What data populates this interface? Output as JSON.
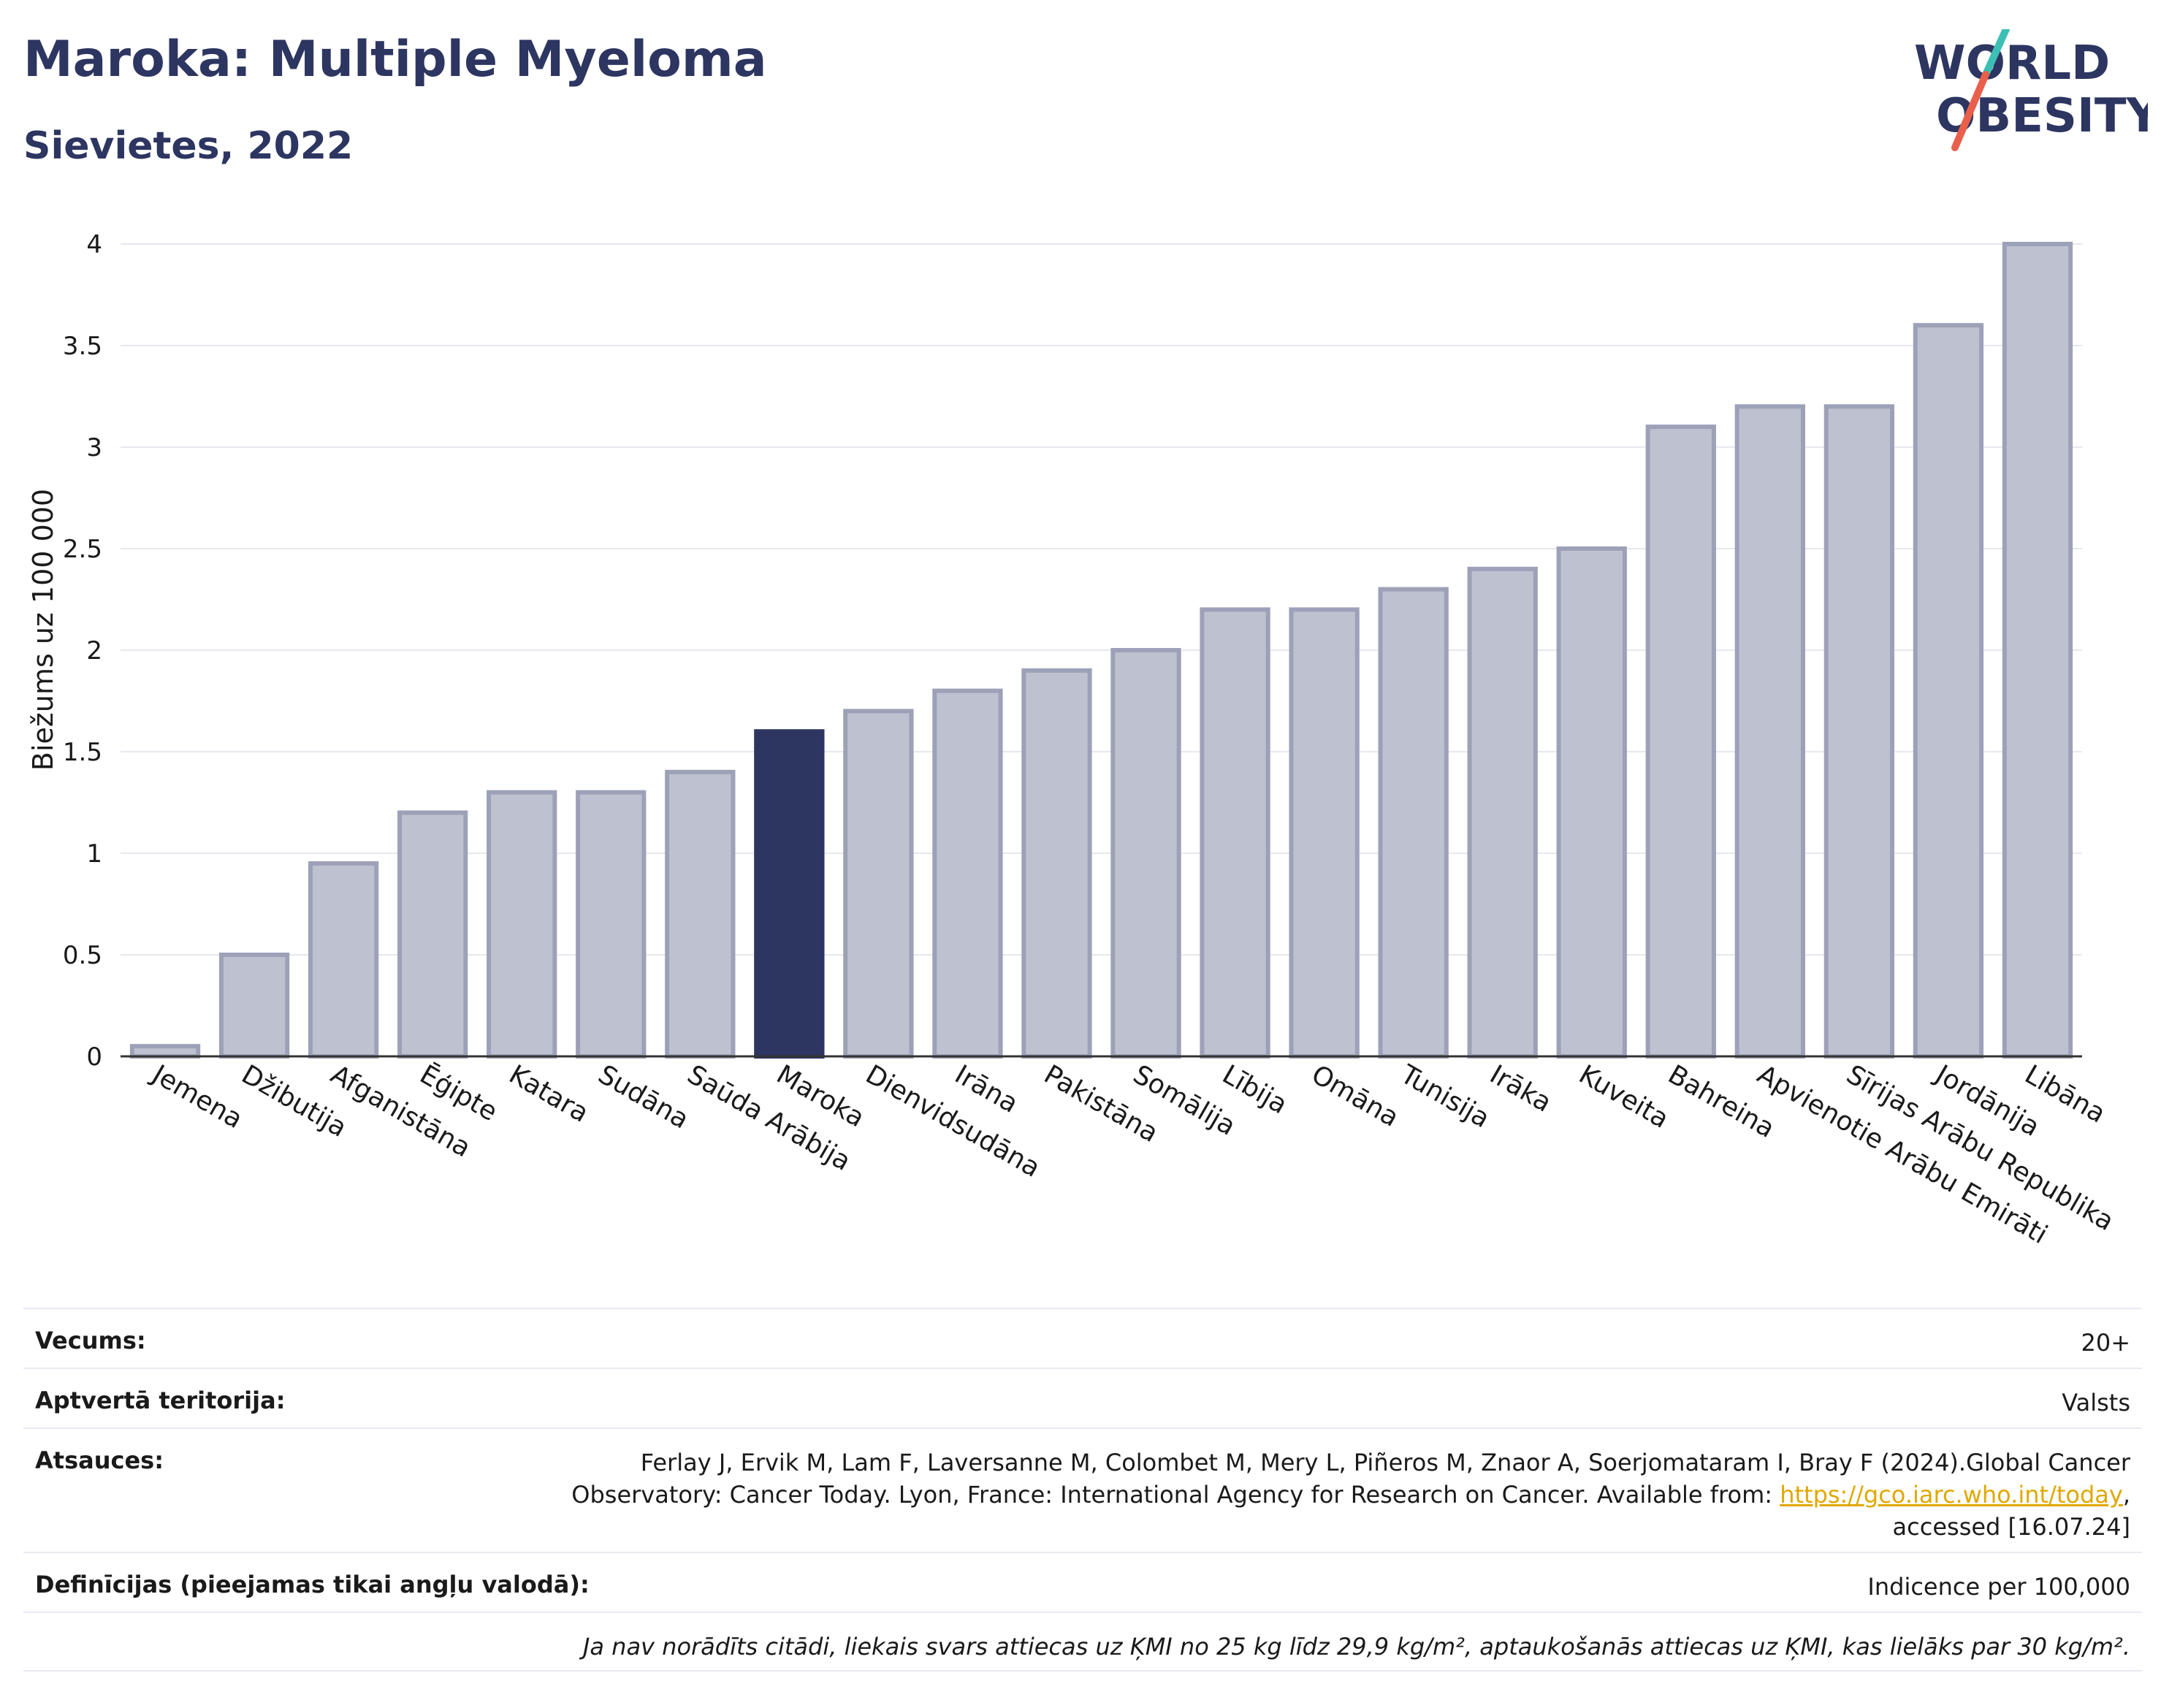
{
  "header": {
    "title": "Maroka: Multiple Myeloma",
    "subtitle": "Sievietes, 2022"
  },
  "logo": {
    "line1": "WORLD",
    "line2": "OBESITY",
    "colors": {
      "text": "#2d3561",
      "slash_teal": "#3cbfb4",
      "slash_red": "#e8604c"
    }
  },
  "chart_data": {
    "type": "bar",
    "ylabel": "Biežums uz 100 000",
    "ylim": [
      0,
      4
    ],
    "yticks": [
      "0",
      "0.5",
      "1",
      "1.5",
      "2",
      "2.5",
      "3",
      "3.5",
      "4"
    ],
    "categories": [
      "Jemena",
      "Džibutija",
      "Afganistāna",
      "Ēģipte",
      "Katara",
      "Sudāna",
      "Saūda Arābija",
      "Maroka",
      "Dienvidsudāna",
      "Irāna",
      "Pakistāna",
      "Somālija",
      "Lībija",
      "Omāna",
      "Tunisija",
      "Irāka",
      "Kuveita",
      "Bahreina",
      "Apvienotie Arābu Emirāti",
      "Sīrijas Arābu Republika",
      "Jordānija",
      "Libāna"
    ],
    "values": [
      0.05,
      0.5,
      0.95,
      1.2,
      1.3,
      1.3,
      1.4,
      1.6,
      1.7,
      1.8,
      1.9,
      2.0,
      2.2,
      2.2,
      2.3,
      2.4,
      2.5,
      3.1,
      3.2,
      3.2,
      3.6,
      4.0
    ],
    "highlight": "Maroka",
    "colors": {
      "bar": "#bec1cf",
      "bar_edge": "#9da1b8",
      "highlight": "#2d3561"
    },
    "grid": true
  },
  "info": {
    "age_label": "Vecums:",
    "age_value": "20+",
    "territory_label": "Aptvertā teritorija:",
    "territory_value": "Valsts",
    "refs_label": "Atsauces:",
    "refs_line1": "Ferlay J, Ervik M, Lam F, Laversanne M, Colombet M, Mery L, Piñeros M, Znaor A, Soerjomataram I, Bray F (2024).Global Cancer",
    "refs_line2": "Observatory: Cancer Today. Lyon, France: International Agency for Research on Cancer. Available from: ",
    "refs_link": "https://gco.iarc.who.int/today",
    "refs_line2_end": ",",
    "refs_line3": "accessed [16.07.24]",
    "defs_label": "Definīcijas (pieejamas tikai angļu valodā):",
    "defs_value": "Indicence per 100,000",
    "note": "Ja nav norādīts citādi, liekais svars attiecas uz ĶMI no 25 kg līdz 29,9 kg/m², aptaukošanās attiecas uz ĶMI, kas lielāks par 30 kg/m²."
  }
}
